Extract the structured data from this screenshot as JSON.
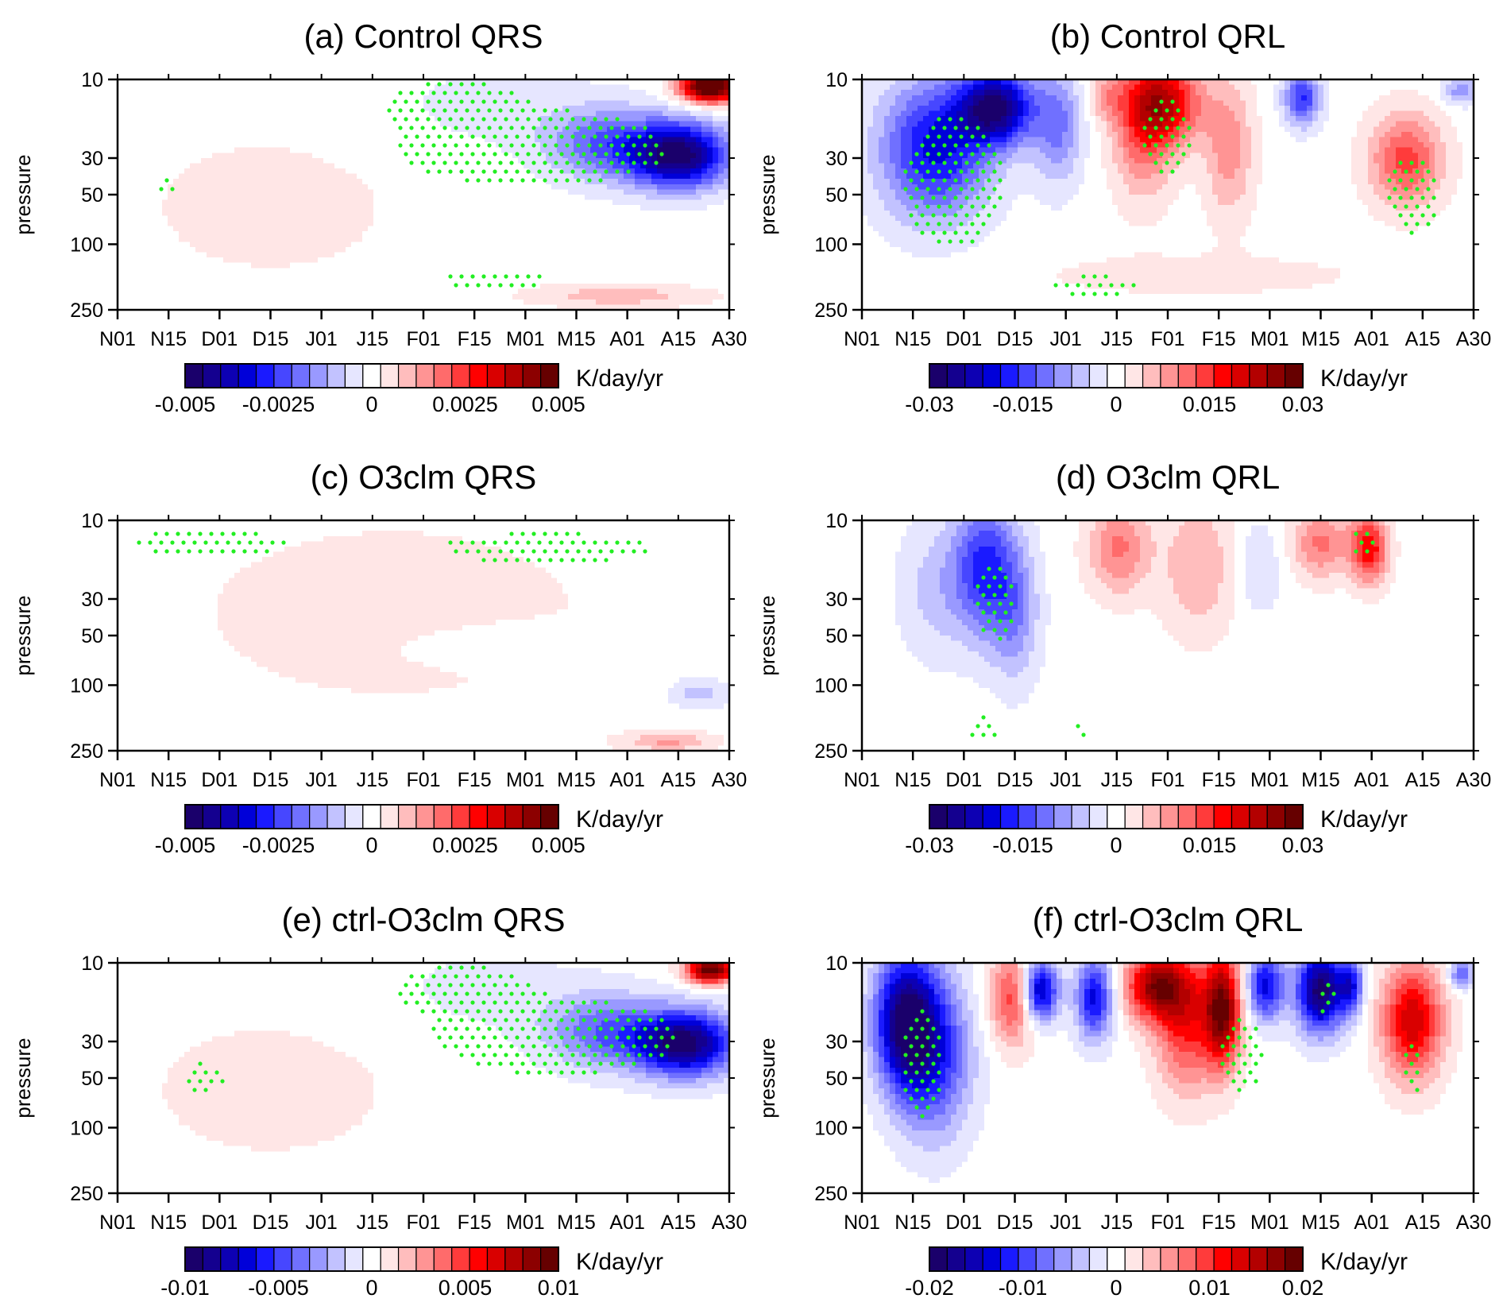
{
  "chart_data": [
    {
      "type": "heatmap",
      "title": "(a) Control QRS",
      "ylabel": "pressure",
      "xticks": [
        "N01",
        "N15",
        "D01",
        "D15",
        "J01",
        "J15",
        "F01",
        "F15",
        "M01",
        "M15",
        "A01",
        "A15",
        "A30"
      ],
      "yticks": [
        "10",
        "30",
        "50",
        "100",
        "250"
      ],
      "yscale": "log",
      "yrange": [
        10,
        250
      ],
      "yinverted": true,
      "colorbar": {
        "labels": [
          "-0.005",
          "-0.0025",
          "0",
          "0.0025",
          "0.005"
        ],
        "units": "K/day/yr",
        "range": [
          -0.006,
          0.006
        ]
      },
      "features": [
        {
          "x": 0.25,
          "y": 0.55,
          "v": 0.0004,
          "sx": 0.3,
          "sy": 0.45
        },
        {
          "x": 0.6,
          "y": 0.12,
          "v": -0.0005,
          "sx": 0.18,
          "sy": 0.2
        },
        {
          "x": 0.8,
          "y": 0.28,
          "v": -0.0025,
          "sx": 0.1,
          "sy": 0.16
        },
        {
          "x": 0.92,
          "y": 0.33,
          "v": -0.0055,
          "sx": 0.08,
          "sy": 0.14
        },
        {
          "x": 0.97,
          "y": 0.03,
          "v": 0.007,
          "sx": 0.05,
          "sy": 0.07
        },
        {
          "x": 0.82,
          "y": 0.94,
          "v": 0.0012,
          "sx": 0.14,
          "sy": 0.05
        }
      ],
      "stipple": [
        {
          "x": 0.68,
          "y": 0.3,
          "sx": 0.26,
          "sy": 0.2
        },
        {
          "x": 0.55,
          "y": 0.1,
          "sx": 0.1,
          "sy": 0.1
        },
        {
          "x": 0.08,
          "y": 0.45,
          "sx": 0.02,
          "sy": 0.05
        },
        {
          "x": 0.62,
          "y": 0.87,
          "sx": 0.1,
          "sy": 0.05
        }
      ]
    },
    {
      "type": "heatmap",
      "title": "(b) Control QRL",
      "ylabel": "pressure",
      "xticks": [
        "N01",
        "N15",
        "D01",
        "D15",
        "J01",
        "J15",
        "F01",
        "F15",
        "M01",
        "M15",
        "A01",
        "A15",
        "A30"
      ],
      "yticks": [
        "10",
        "30",
        "50",
        "100",
        "250"
      ],
      "yscale": "log",
      "yrange": [
        10,
        250
      ],
      "yinverted": true,
      "colorbar": {
        "labels": [
          "-0.03",
          "-0.015",
          "0",
          "0.015",
          "0.03"
        ],
        "units": "K/day/yr",
        "range": [
          -0.034,
          0.034
        ]
      },
      "features": [
        {
          "x": 0.12,
          "y": 0.3,
          "v": -0.022,
          "sx": 0.09,
          "sy": 0.3
        },
        {
          "x": 0.22,
          "y": 0.12,
          "v": -0.03,
          "sx": 0.06,
          "sy": 0.16
        },
        {
          "x": 0.32,
          "y": 0.2,
          "v": -0.012,
          "sx": 0.04,
          "sy": 0.25
        },
        {
          "x": 0.5,
          "y": 0.1,
          "v": 0.02,
          "sx": 0.06,
          "sy": 0.18
        },
        {
          "x": 0.46,
          "y": 0.2,
          "v": 0.014,
          "sx": 0.05,
          "sy": 0.3
        },
        {
          "x": 0.6,
          "y": 0.3,
          "v": 0.01,
          "sx": 0.04,
          "sy": 0.3
        },
        {
          "x": 0.72,
          "y": 0.08,
          "v": -0.018,
          "sx": 0.03,
          "sy": 0.12
        },
        {
          "x": 0.89,
          "y": 0.35,
          "v": 0.016,
          "sx": 0.06,
          "sy": 0.2
        },
        {
          "x": 0.98,
          "y": 0.05,
          "v": -0.01,
          "sx": 0.03,
          "sy": 0.06
        },
        {
          "x": 0.4,
          "y": 0.07,
          "v": 0.008,
          "sx": 0.03,
          "sy": 0.1
        },
        {
          "x": 0.55,
          "y": 0.85,
          "v": 0.003,
          "sx": 0.3,
          "sy": 0.1
        }
      ],
      "stipple": [
        {
          "x": 0.15,
          "y": 0.45,
          "sx": 0.1,
          "sy": 0.35
        },
        {
          "x": 0.5,
          "y": 0.25,
          "sx": 0.05,
          "sy": 0.2
        },
        {
          "x": 0.9,
          "y": 0.5,
          "sx": 0.05,
          "sy": 0.2
        },
        {
          "x": 0.38,
          "y": 0.9,
          "sx": 0.08,
          "sy": 0.06
        }
      ]
    },
    {
      "type": "heatmap",
      "title": "(c) O3clm QRS",
      "ylabel": "pressure",
      "xticks": [
        "N01",
        "N15",
        "D01",
        "D15",
        "J01",
        "J15",
        "F01",
        "F15",
        "M01",
        "M15",
        "A01",
        "A15",
        "A30"
      ],
      "yticks": [
        "10",
        "30",
        "50",
        "100",
        "250"
      ],
      "yscale": "log",
      "yrange": [
        10,
        250
      ],
      "yinverted": true,
      "colorbar": {
        "labels": [
          "-0.005",
          "-0.0025",
          "0",
          "0.0025",
          "0.005"
        ],
        "units": "K/day/yr",
        "range": [
          -0.006,
          0.006
        ]
      },
      "features": [
        {
          "x": 0.45,
          "y": 0.4,
          "v": 0.0004,
          "sx": 0.5,
          "sy": 0.6
        },
        {
          "x": 0.7,
          "y": 0.55,
          "v": -0.0005,
          "sx": 0.18,
          "sy": 0.08
        },
        {
          "x": 0.95,
          "y": 0.75,
          "v": -0.0012,
          "sx": 0.05,
          "sy": 0.07
        },
        {
          "x": 0.9,
          "y": 0.96,
          "v": 0.0015,
          "sx": 0.07,
          "sy": 0.04
        }
      ],
      "stipple": [
        {
          "x": 0.15,
          "y": 0.1,
          "sx": 0.15,
          "sy": 0.07
        },
        {
          "x": 0.7,
          "y": 0.12,
          "sx": 0.2,
          "sy": 0.08
        },
        {
          "x": 0.42,
          "y": 0.5,
          "sx": 0.01,
          "sy": 0.01
        }
      ]
    },
    {
      "type": "heatmap",
      "title": "(d) O3clm QRL",
      "ylabel": "pressure",
      "xticks": [
        "N01",
        "N15",
        "D01",
        "D15",
        "J01",
        "J15",
        "F01",
        "F15",
        "M01",
        "M15",
        "A01",
        "A15",
        "A30"
      ],
      "yticks": [
        "10",
        "30",
        "50",
        "100",
        "250"
      ],
      "yscale": "log",
      "yrange": [
        10,
        250
      ],
      "yinverted": true,
      "colorbar": {
        "labels": [
          "-0.03",
          "-0.015",
          "0",
          "0.015",
          "0.03"
        ],
        "units": "K/day/yr",
        "range": [
          -0.034,
          0.034
        ]
      },
      "features": [
        {
          "x": 0.2,
          "y": 0.2,
          "v": -0.018,
          "sx": 0.05,
          "sy": 0.3
        },
        {
          "x": 0.25,
          "y": 0.4,
          "v": -0.01,
          "sx": 0.04,
          "sy": 0.3
        },
        {
          "x": 0.12,
          "y": 0.3,
          "v": -0.006,
          "sx": 0.06,
          "sy": 0.3
        },
        {
          "x": 0.42,
          "y": 0.12,
          "v": 0.012,
          "sx": 0.05,
          "sy": 0.2
        },
        {
          "x": 0.55,
          "y": 0.2,
          "v": 0.008,
          "sx": 0.06,
          "sy": 0.3
        },
        {
          "x": 0.75,
          "y": 0.1,
          "v": 0.012,
          "sx": 0.05,
          "sy": 0.15
        },
        {
          "x": 0.83,
          "y": 0.12,
          "v": 0.02,
          "sx": 0.03,
          "sy": 0.15
        },
        {
          "x": 0.65,
          "y": 0.2,
          "v": -0.005,
          "sx": 0.04,
          "sy": 0.2
        }
      ],
      "stipple": [
        {
          "x": 0.22,
          "y": 0.35,
          "sx": 0.04,
          "sy": 0.2
        },
        {
          "x": 0.82,
          "y": 0.1,
          "sx": 0.02,
          "sy": 0.08
        },
        {
          "x": 0.2,
          "y": 0.9,
          "sx": 0.03,
          "sy": 0.06
        },
        {
          "x": 0.36,
          "y": 0.92,
          "sx": 0.015,
          "sy": 0.05
        }
      ]
    },
    {
      "type": "heatmap",
      "title": "(e) ctrl-O3clm QRS",
      "ylabel": "pressure",
      "xticks": [
        "N01",
        "N15",
        "D01",
        "D15",
        "J01",
        "J15",
        "F01",
        "F15",
        "M01",
        "M15",
        "A01",
        "A15",
        "A30"
      ],
      "yticks": [
        "10",
        "30",
        "50",
        "100",
        "250"
      ],
      "yscale": "log",
      "yrange": [
        10,
        250
      ],
      "yinverted": true,
      "colorbar": {
        "labels": [
          "-0.01",
          "-0.005",
          "0",
          "0.005",
          "0.01"
        ],
        "units": "K/day/yr",
        "range": [
          -0.012,
          0.012
        ]
      },
      "features": [
        {
          "x": 0.25,
          "y": 0.55,
          "v": 0.0008,
          "sx": 0.3,
          "sy": 0.45
        },
        {
          "x": 0.6,
          "y": 0.12,
          "v": -0.001,
          "sx": 0.18,
          "sy": 0.2
        },
        {
          "x": 0.8,
          "y": 0.3,
          "v": -0.005,
          "sx": 0.1,
          "sy": 0.16
        },
        {
          "x": 0.93,
          "y": 0.35,
          "v": -0.011,
          "sx": 0.08,
          "sy": 0.14
        },
        {
          "x": 0.97,
          "y": 0.03,
          "v": 0.012,
          "sx": 0.04,
          "sy": 0.06
        }
      ],
      "stipple": [
        {
          "x": 0.72,
          "y": 0.32,
          "sx": 0.24,
          "sy": 0.2
        },
        {
          "x": 0.55,
          "y": 0.1,
          "sx": 0.1,
          "sy": 0.1
        },
        {
          "x": 0.14,
          "y": 0.5,
          "sx": 0.04,
          "sy": 0.08
        }
      ]
    },
    {
      "type": "heatmap",
      "title": "(f) ctrl-O3clm QRL",
      "ylabel": "pressure",
      "xticks": [
        "N01",
        "N15",
        "D01",
        "D15",
        "J01",
        "J15",
        "F01",
        "F15",
        "M01",
        "M15",
        "A01",
        "A15",
        "A30"
      ],
      "yticks": [
        "10",
        "30",
        "50",
        "100",
        "250"
      ],
      "yscale": "log",
      "yrange": [
        10,
        250
      ],
      "yinverted": true,
      "colorbar": {
        "labels": [
          "-0.02",
          "-0.01",
          "0",
          "0.01",
          "0.02"
        ],
        "units": "K/day/yr",
        "range": [
          -0.023,
          0.023
        ]
      },
      "features": [
        {
          "x": 0.07,
          "y": 0.25,
          "v": -0.02,
          "sx": 0.05,
          "sy": 0.3
        },
        {
          "x": 0.12,
          "y": 0.4,
          "v": -0.012,
          "sx": 0.06,
          "sy": 0.35
        },
        {
          "x": 0.25,
          "y": 0.15,
          "v": 0.012,
          "sx": 0.04,
          "sy": 0.2
        },
        {
          "x": 0.29,
          "y": 0.12,
          "v": -0.02,
          "sx": 0.03,
          "sy": 0.14
        },
        {
          "x": 0.38,
          "y": 0.15,
          "v": -0.015,
          "sx": 0.03,
          "sy": 0.18
        },
        {
          "x": 0.48,
          "y": 0.1,
          "v": 0.018,
          "sx": 0.05,
          "sy": 0.15
        },
        {
          "x": 0.53,
          "y": 0.25,
          "v": 0.012,
          "sx": 0.05,
          "sy": 0.3
        },
        {
          "x": 0.59,
          "y": 0.2,
          "v": 0.02,
          "sx": 0.03,
          "sy": 0.25
        },
        {
          "x": 0.66,
          "y": 0.1,
          "v": -0.015,
          "sx": 0.03,
          "sy": 0.15
        },
        {
          "x": 0.75,
          "y": 0.12,
          "v": -0.022,
          "sx": 0.04,
          "sy": 0.18
        },
        {
          "x": 0.8,
          "y": 0.1,
          "v": -0.012,
          "sx": 0.02,
          "sy": 0.12
        },
        {
          "x": 0.9,
          "y": 0.25,
          "v": 0.016,
          "sx": 0.05,
          "sy": 0.25
        },
        {
          "x": 0.98,
          "y": 0.05,
          "v": -0.01,
          "sx": 0.02,
          "sy": 0.06
        }
      ],
      "stipple": [
        {
          "x": 0.1,
          "y": 0.45,
          "sx": 0.04,
          "sy": 0.3
        },
        {
          "x": 0.62,
          "y": 0.4,
          "sx": 0.04,
          "sy": 0.2
        },
        {
          "x": 0.9,
          "y": 0.45,
          "sx": 0.02,
          "sy": 0.15
        },
        {
          "x": 0.76,
          "y": 0.15,
          "sx": 0.02,
          "sy": 0.08
        }
      ]
    }
  ]
}
